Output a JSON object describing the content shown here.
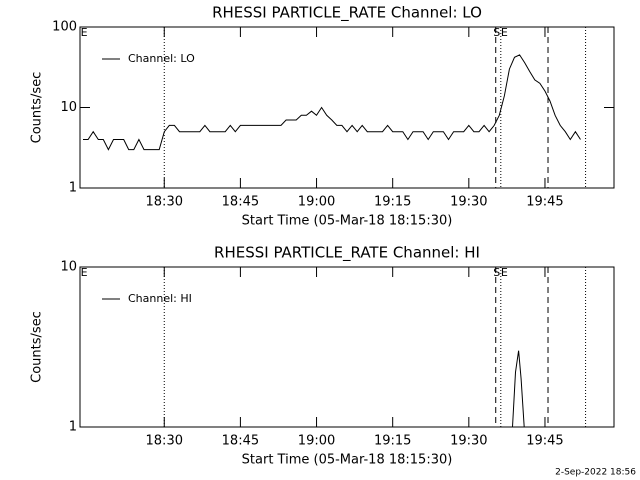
{
  "chart_data": [
    {
      "type": "line",
      "title": "RHESSI PARTICLE_RATE Channel: LO",
      "xlabel": "Start Time (05-Mar-18 18:15:30)",
      "ylabel": "Counts/sec",
      "log_y": true,
      "ylim": [
        1,
        100
      ],
      "yticks": [
        1,
        10,
        100
      ],
      "xlim": [
        1093.4,
        1198.6
      ],
      "xticks": [
        {
          "value": 1110,
          "label": "18:30"
        },
        {
          "value": 1125,
          "label": "18:45"
        },
        {
          "value": 1140,
          "label": "19:00"
        },
        {
          "value": 1155,
          "label": "19:15"
        },
        {
          "value": 1170,
          "label": "19:30"
        },
        {
          "value": 1185,
          "label": "19:45"
        }
      ],
      "legend": "upper left",
      "vlines": [
        {
          "x": 1110,
          "style": "dotted"
        },
        {
          "x": 1175.3,
          "style": "dashed"
        },
        {
          "x": 1176.3,
          "style": "dotted"
        },
        {
          "x": 1185.6,
          "style": "dashed"
        },
        {
          "x": 1193,
          "style": "dotted"
        }
      ],
      "annotations": [
        {
          "text": "E",
          "x": 1094.2
        },
        {
          "text": "S",
          "x": 1175.5
        },
        {
          "text": "E",
          "x": 1177
        }
      ],
      "x": [
        1094,
        1095,
        1096,
        1097,
        1098,
        1099,
        1100,
        1101,
        1102,
        1103,
        1104,
        1105,
        1106,
        1107,
        1108,
        1109,
        1110,
        1111,
        1112,
        1113,
        1114,
        1115,
        1116,
        1117,
        1118,
        1119,
        1120,
        1121,
        1122,
        1123,
        1124,
        1125,
        1126,
        1127,
        1128,
        1129,
        1130,
        1131,
        1132,
        1133,
        1134,
        1135,
        1136,
        1137,
        1138,
        1139,
        1140,
        1141,
        1142,
        1143,
        1144,
        1145,
        1146,
        1147,
        1148,
        1149,
        1150,
        1151,
        1152,
        1153,
        1154,
        1155,
        1156,
        1157,
        1158,
        1159,
        1160,
        1161,
        1162,
        1163,
        1164,
        1165,
        1166,
        1167,
        1168,
        1169,
        1170,
        1171,
        1172,
        1173,
        1174,
        1175,
        1176,
        1177,
        1178,
        1179,
        1180,
        1181,
        1182,
        1183,
        1184,
        1185,
        1186,
        1187,
        1188,
        1189,
        1190,
        1191,
        1192
      ],
      "series": [
        {
          "name": "Channel: LO",
          "color": "#000000",
          "values": [
            4,
            4,
            5,
            4,
            4,
            3,
            4,
            4,
            4,
            3,
            3,
            4,
            3,
            3,
            3,
            3,
            5,
            6,
            6,
            5,
            5,
            5,
            5,
            5,
            6,
            5,
            5,
            5,
            5,
            6,
            5,
            6,
            6,
            6,
            6,
            6,
            6,
            6,
            6,
            6,
            7,
            7,
            7,
            8,
            8,
            9,
            8,
            10,
            8,
            7,
            6,
            6,
            5,
            6,
            5,
            6,
            5,
            5,
            5,
            5,
            6,
            5,
            5,
            5,
            4,
            5,
            5,
            5,
            4,
            5,
            5,
            5,
            4,
            5,
            5,
            5,
            6,
            5,
            5,
            6,
            5,
            6,
            8,
            14,
            30,
            42,
            45,
            36,
            28,
            22,
            20,
            16,
            12,
            8,
            6,
            5,
            4,
            5,
            4
          ]
        }
      ]
    },
    {
      "type": "line",
      "title": "RHESSI PARTICLE_RATE Channel: HI",
      "xlabel": "Start Time (05-Mar-18 18:15:30)",
      "ylabel": "Counts/sec",
      "log_y": true,
      "ylim": [
        1,
        10
      ],
      "yticks": [
        1,
        10
      ],
      "xlim": [
        1093.4,
        1198.6
      ],
      "xticks": [
        {
          "value": 1110,
          "label": "18:30"
        },
        {
          "value": 1125,
          "label": "18:45"
        },
        {
          "value": 1140,
          "label": "19:00"
        },
        {
          "value": 1155,
          "label": "19:15"
        },
        {
          "value": 1170,
          "label": "19:30"
        },
        {
          "value": 1185,
          "label": "19:45"
        }
      ],
      "legend": "upper left",
      "vlines": [
        {
          "x": 1110,
          "style": "dotted"
        },
        {
          "x": 1175.3,
          "style": "dashed"
        },
        {
          "x": 1176.3,
          "style": "dotted"
        },
        {
          "x": 1185.6,
          "style": "dashed"
        },
        {
          "x": 1193,
          "style": "dotted"
        }
      ],
      "annotations": [
        {
          "text": "E",
          "x": 1094.2
        },
        {
          "text": "S",
          "x": 1175.5
        },
        {
          "text": "E",
          "x": 1177
        }
      ],
      "x": [
        1178.6,
        1179.2,
        1179.8,
        1180.3,
        1180.9
      ],
      "series": [
        {
          "name": "Channel: HI",
          "color": "#000000",
          "values": [
            1,
            2.2,
            3,
            2,
            1
          ]
        }
      ]
    }
  ],
  "footer": "2-Sep-2022 18:56"
}
